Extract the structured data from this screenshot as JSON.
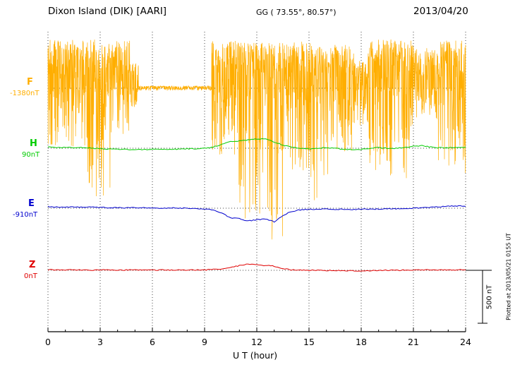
{
  "header": {
    "station": "Dixon Island (DIK)  [AARI]",
    "coords": "GG ( 73.55°,  80.57°)",
    "date": "2013/04/20"
  },
  "footer_note": "Plotted at 2013/05/21 0155 UT",
  "chart_data": {
    "type": "line",
    "title": "Dixon Island (DIK) [AARI] magnetogram 2013/04/20",
    "xlabel": "U T (hour)",
    "x_range": [
      0,
      24
    ],
    "x_ticks": [
      0,
      3,
      6,
      9,
      12,
      15,
      18,
      21,
      24
    ],
    "scale_bar_label": "500 nT",
    "scale_bar_nT": 500,
    "grid": "dotted vertical at 3h, dotted horizontal at channel baselines",
    "channels": [
      {
        "id": "F",
        "label": "F",
        "baseline_label": "-1380nT",
        "color": "#FFAE00",
        "style": "dense noisy trace",
        "noise_envelope_h0_h1_topnT_botnT": [
          [
            0.0,
            2.1,
            460,
            -550
          ],
          [
            2.1,
            3.6,
            460,
            -1050
          ],
          [
            3.6,
            4.7,
            450,
            -450
          ],
          [
            4.7,
            5.2,
            250,
            -200
          ],
          [
            5.2,
            9.4,
            22,
            -22
          ],
          [
            9.4,
            10.8,
            450,
            -650
          ],
          [
            10.8,
            13.6,
            430,
            -1430
          ],
          [
            13.6,
            15.1,
            440,
            -800
          ],
          [
            15.1,
            16.4,
            400,
            -1150
          ],
          [
            16.4,
            17.6,
            430,
            -650
          ],
          [
            17.6,
            18.4,
            260,
            -350
          ],
          [
            18.4,
            21.0,
            460,
            -850
          ],
          [
            21.0,
            22.4,
            380,
            -300
          ],
          [
            22.4,
            24.0,
            450,
            -800
          ]
        ]
      },
      {
        "id": "H",
        "label": "H",
        "baseline_label": "90nT",
        "color": "#00CC00",
        "sample_step_h": 0.5,
        "offsets_nT": [
          10,
          8,
          6,
          8,
          5,
          0,
          -5,
          -8,
          -10,
          -12,
          -15,
          -12,
          -10,
          -12,
          -10,
          -8,
          -5,
          -5,
          0,
          10,
          40,
          60,
          70,
          80,
          90,
          85,
          60,
          30,
          10,
          0,
          -5,
          0,
          5,
          0,
          -10,
          -15,
          -10,
          0,
          5,
          0,
          0,
          5,
          20,
          25,
          10,
          5,
          5,
          8,
          10
        ]
      },
      {
        "id": "E",
        "label": "E",
        "baseline_label": "-910nT",
        "color": "#0000CE",
        "sample_step_h": 0.5,
        "offsets_nT": [
          15,
          12,
          10,
          10,
          8,
          10,
          8,
          5,
          5,
          3,
          5,
          3,
          0,
          0,
          3,
          0,
          0,
          -3,
          -5,
          -20,
          -50,
          -90,
          -100,
          -120,
          -110,
          -100,
          -130,
          -70,
          -30,
          -15,
          -10,
          -10,
          -8,
          -10,
          -10,
          -12,
          -10,
          -8,
          -8,
          -5,
          -5,
          -3,
          0,
          5,
          10,
          15,
          20,
          20,
          20
        ]
      },
      {
        "id": "Z",
        "label": "Z",
        "baseline_label": "0nT",
        "color": "#E00000",
        "sample_step_h": 0.5,
        "offsets_nT": [
          5,
          5,
          4,
          5,
          3,
          3,
          5,
          4,
          3,
          3,
          3,
          2,
          2,
          3,
          2,
          3,
          3,
          4,
          5,
          8,
          15,
          25,
          45,
          60,
          50,
          45,
          40,
          15,
          5,
          3,
          0,
          0,
          -2,
          0,
          -3,
          -5,
          -5,
          -3,
          0,
          0,
          0,
          2,
          3,
          3,
          2,
          3,
          3,
          4,
          5
        ]
      }
    ]
  }
}
